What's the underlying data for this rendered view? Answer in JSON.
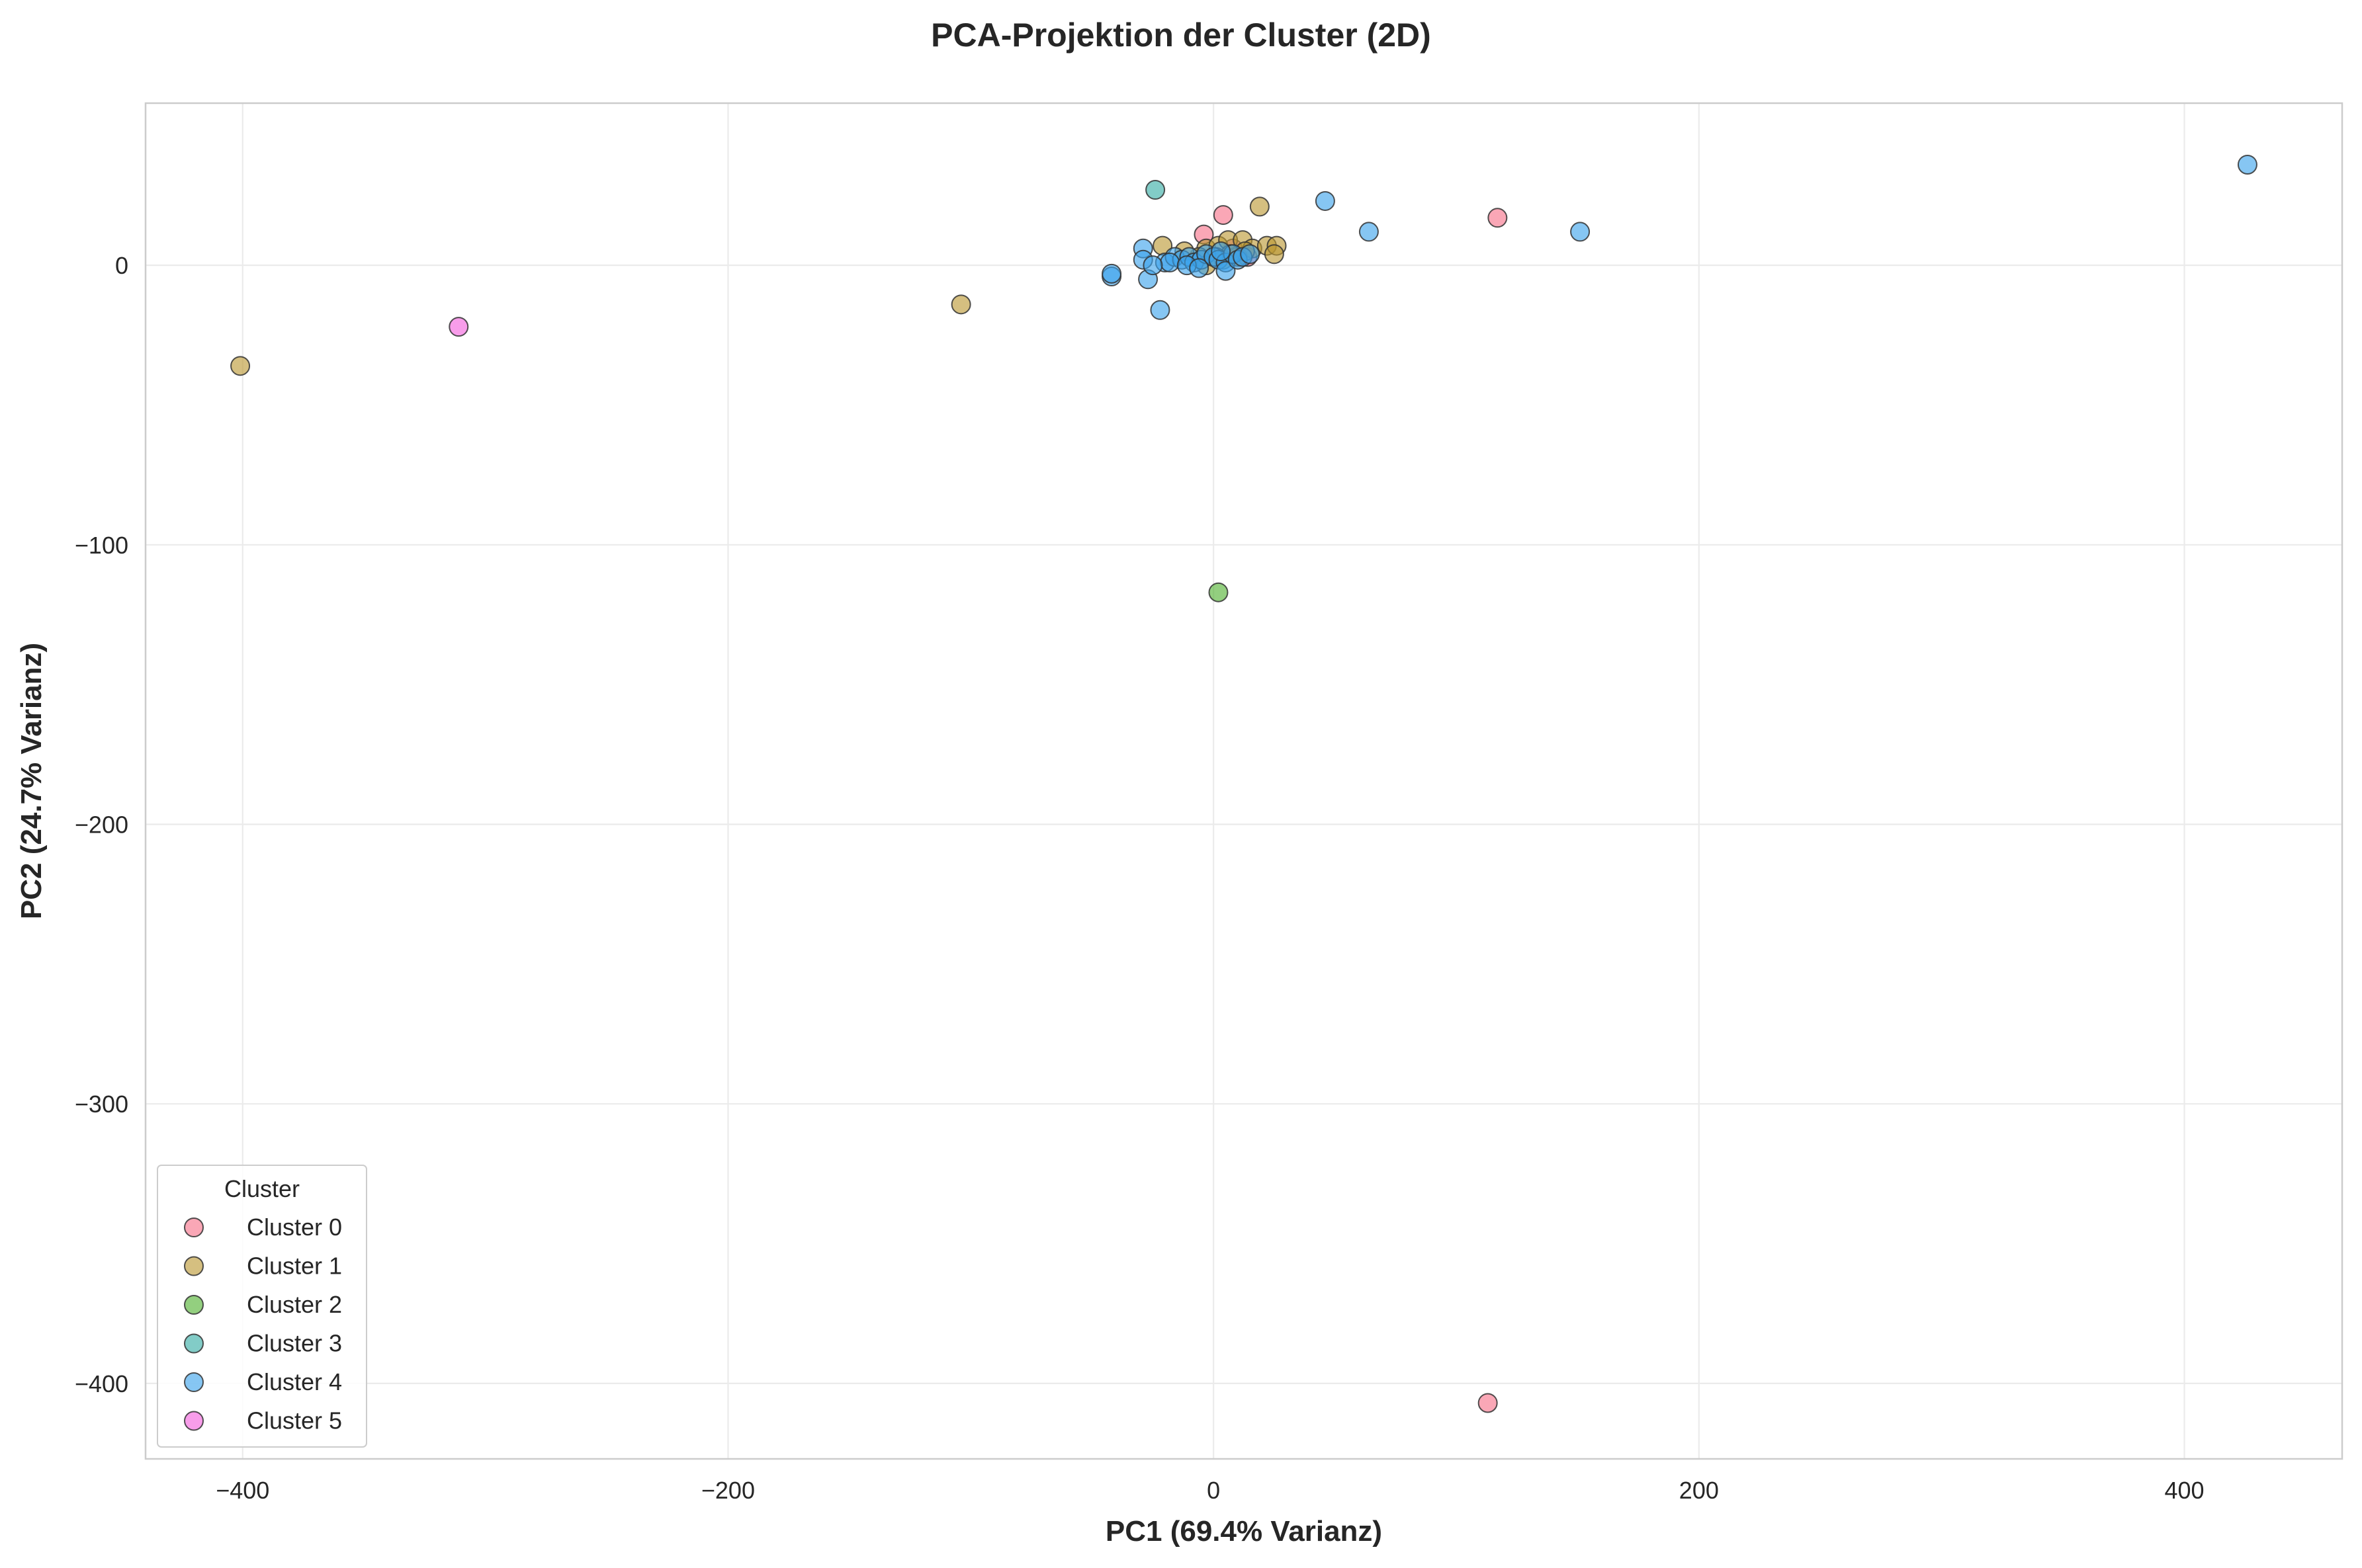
{
  "chart_data": {
    "type": "scatter",
    "title": "PCA-Projektion der Cluster (2D)",
    "xlabel": "PC1 (69.4% Varianz)",
    "ylabel": "PC2 (24.7% Varianz)",
    "xlim": [
      -440,
      465
    ],
    "ylim": [
      -427,
      58
    ],
    "xticks": [
      -400,
      -200,
      0,
      200,
      400
    ],
    "yticks": [
      0,
      -100,
      -200,
      -300,
      -400
    ],
    "xtick_labels": [
      "−400",
      "−200",
      "0",
      "200",
      "400"
    ],
    "ytick_labels": [
      "0",
      "−100",
      "−200",
      "−300",
      "−400"
    ],
    "grid": true,
    "legend": {
      "title": "Cluster",
      "placement": "lower-left"
    },
    "series": [
      {
        "name": "Cluster 0",
        "color": "#f77189",
        "points": [
          [
            113,
            -407
          ],
          [
            117,
            17
          ],
          [
            4,
            18
          ],
          [
            -4,
            11
          ],
          [
            8,
            6
          ],
          [
            14,
            3
          ]
        ]
      },
      {
        "name": "Cluster 1",
        "color": "#bb9832",
        "points": [
          [
            -401,
            -36
          ],
          [
            -104,
            -14
          ],
          [
            19,
            21
          ],
          [
            -21,
            7
          ],
          [
            -3,
            6
          ],
          [
            2,
            7
          ],
          [
            6,
            9
          ],
          [
            12,
            9
          ],
          [
            16,
            6
          ],
          [
            22,
            7
          ],
          [
            26,
            7
          ],
          [
            25,
            4
          ],
          [
            -6,
            3
          ],
          [
            4,
            2
          ],
          [
            10,
            3
          ],
          [
            13,
            5
          ],
          [
            -3,
            0
          ],
          [
            7,
            4
          ],
          [
            -12,
            5
          ],
          [
            1,
            3
          ]
        ]
      },
      {
        "name": "Cluster 2",
        "color": "#50b131",
        "points": [
          [
            2,
            -117
          ]
        ]
      },
      {
        "name": "Cluster 3",
        "color": "#36ada4",
        "points": [
          [
            -24,
            27
          ]
        ]
      },
      {
        "name": "Cluster 4",
        "color": "#3ba3ec",
        "points": [
          [
            426,
            36
          ],
          [
            151,
            12
          ],
          [
            64,
            12
          ],
          [
            46,
            23
          ],
          [
            -29,
            6
          ],
          [
            -29,
            2
          ],
          [
            -27,
            -5
          ],
          [
            -42,
            -4
          ],
          [
            -42,
            -3
          ],
          [
            -22,
            -16
          ],
          [
            -20,
            1
          ],
          [
            -16,
            3
          ],
          [
            -13,
            2
          ],
          [
            -10,
            3
          ],
          [
            -8,
            1
          ],
          [
            -5,
            2
          ],
          [
            -3,
            4
          ],
          [
            0,
            3
          ],
          [
            2,
            2
          ],
          [
            5,
            1
          ],
          [
            5,
            -2
          ],
          [
            8,
            4
          ],
          [
            10,
            2
          ],
          [
            12,
            3
          ],
          [
            15,
            4
          ],
          [
            -18,
            1
          ],
          [
            -11,
            0
          ],
          [
            -6,
            -1
          ],
          [
            3,
            5
          ],
          [
            -25,
            0
          ]
        ]
      },
      {
        "name": "Cluster 5",
        "color": "#f461dd",
        "points": [
          [
            -311,
            -22
          ]
        ]
      }
    ]
  }
}
